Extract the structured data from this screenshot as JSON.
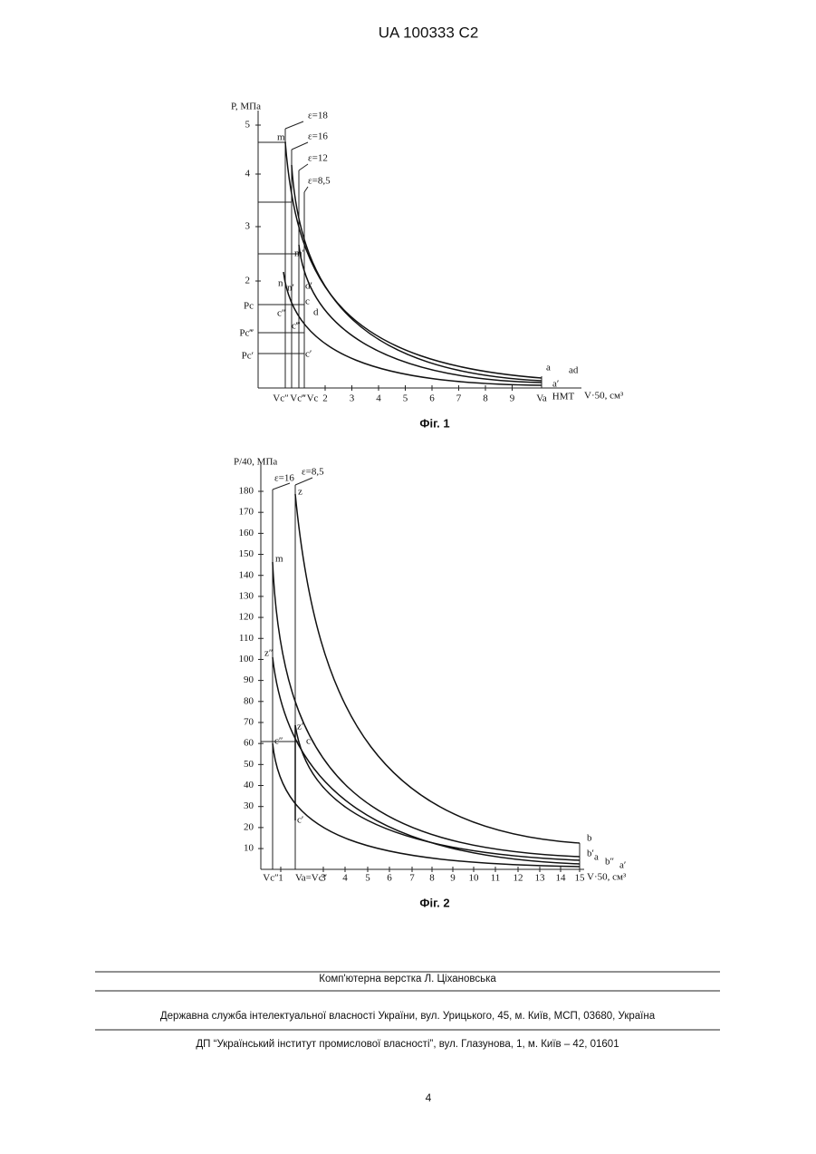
{
  "header": {
    "doc_id": "UA   100333   C2"
  },
  "figures": [
    {
      "y_axis_label": "P, МПа",
      "x_axis_label": "V·50, см³",
      "yticks": [
        "5",
        "4",
        "3",
        "2"
      ],
      "xticks": [
        "2",
        "3",
        "4",
        "5",
        "6",
        "7",
        "8",
        "9"
      ],
      "x_marks": [
        "Vc″",
        "Vc‴",
        "Vc",
        "Va",
        "НМТ"
      ],
      "epsilon_labels": [
        "ε=18",
        "ε=16",
        "ε=12",
        "ε=8,5"
      ],
      "pressure_labels": [
        "Pc",
        "Pc‴",
        "Pc′"
      ],
      "point_labels": [
        "m",
        "m′",
        "n",
        "n′",
        "d′",
        "c",
        "d",
        "c″",
        "c‴",
        "c′",
        "a",
        "ad",
        "a′"
      ],
      "caption": "Фіг. 1"
    },
    {
      "y_axis_label": "P/40, МПа",
      "x_axis_label": "V·50, см³",
      "yticks": [
        "180",
        "170",
        "160",
        "150",
        "140",
        "130",
        "120",
        "110",
        "100",
        "90",
        "80",
        "70",
        "60",
        "50",
        "40",
        "30",
        "20",
        "10"
      ],
      "xticks": [
        "1",
        "3",
        "4",
        "5",
        "6",
        "7",
        "8",
        "9",
        "10",
        "11",
        "12",
        "13",
        "14",
        "15"
      ],
      "x_marks": [
        "Vc″",
        "Va=Vc″"
      ],
      "epsilon_labels": [
        "ε=16",
        "ε=8,5"
      ],
      "point_labels": [
        "z",
        "m",
        "z″",
        "z′",
        "c",
        "c″",
        "c′",
        "b",
        "b′",
        "a",
        "b″",
        "a′"
      ],
      "caption": "Фіг. 2"
    }
  ],
  "footer": {
    "layout": "Комп'ютерна верстка Л. Ціхановська",
    "office": "Державна служба інтелектуальної власності України, вул. Урицького, 45, м. Київ, МСП, 03680, Україна",
    "publisher": "ДП “Український інститут промислової власності”, вул. Глазунова, 1, м. Київ – 42, 01601",
    "page_number": "4"
  }
}
